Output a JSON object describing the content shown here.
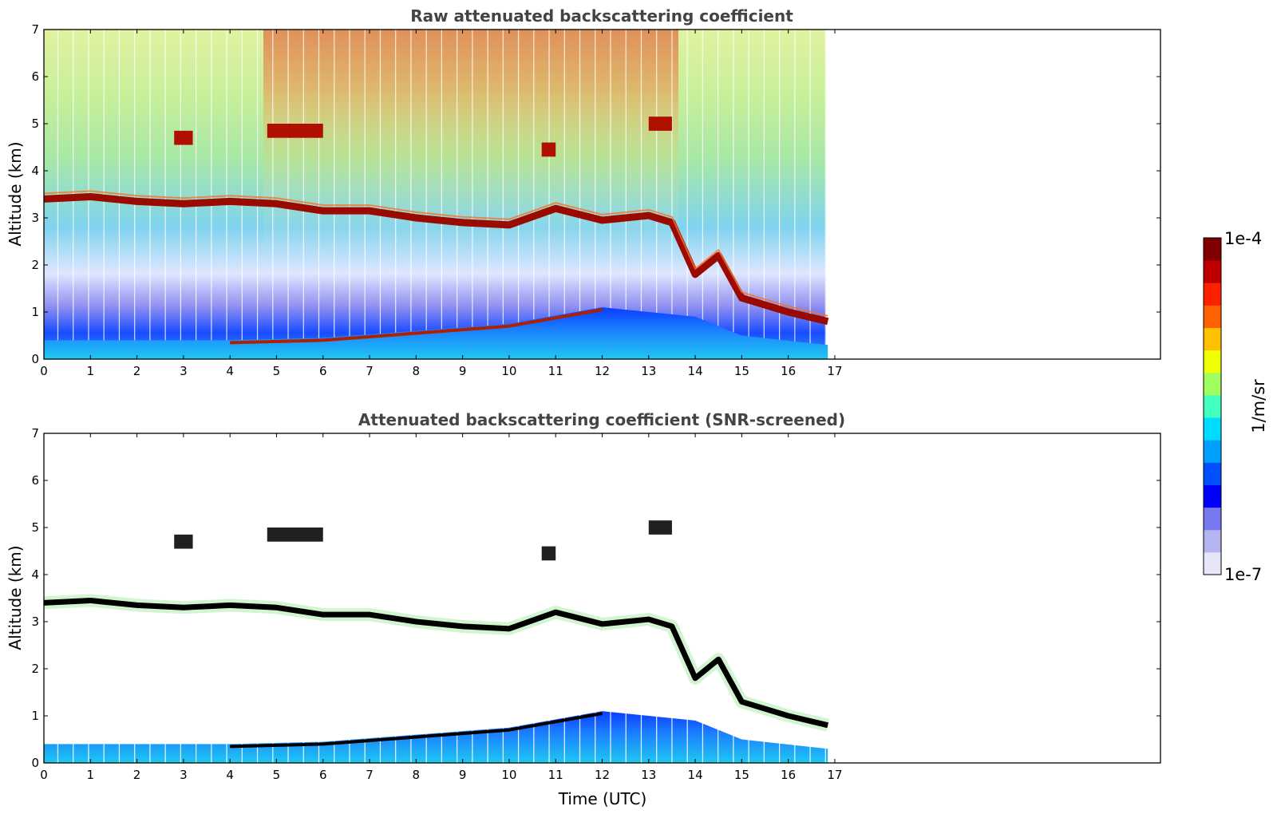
{
  "chart_data": [
    {
      "type": "heatmap",
      "title": "Raw attenuated backscattering coefficient",
      "xlabel": "",
      "ylabel": "Altitude (km)",
      "xlim": [
        0,
        24
      ],
      "ylim": [
        0,
        7
      ],
      "xticks": [
        "0",
        "1",
        "2",
        "3",
        "4",
        "5",
        "6",
        "7",
        "8",
        "9",
        "10",
        "11",
        "12",
        "13",
        "14",
        "15",
        "16",
        "17"
      ],
      "yticks": [
        "0",
        "1",
        "2",
        "3",
        "4",
        "5",
        "6",
        "7"
      ],
      "data_end_time": 16.85,
      "cloud_layer": [
        [
          0,
          3.4
        ],
        [
          1,
          3.45
        ],
        [
          2,
          3.35
        ],
        [
          3,
          3.3
        ],
        [
          4,
          3.35
        ],
        [
          5,
          3.3
        ],
        [
          6,
          3.15
        ],
        [
          7,
          3.15
        ],
        [
          8,
          3.0
        ],
        [
          9,
          2.9
        ],
        [
          10,
          2.85
        ],
        [
          11,
          3.2
        ],
        [
          12,
          2.95
        ],
        [
          13,
          3.05
        ],
        [
          13.5,
          2.9
        ],
        [
          14,
          1.8
        ],
        [
          14.5,
          2.2
        ],
        [
          15,
          1.3
        ],
        [
          16,
          1.0
        ],
        [
          16.85,
          0.8
        ]
      ],
      "boundary_layer_top": [
        [
          0,
          0.4
        ],
        [
          2,
          0.4
        ],
        [
          4,
          0.4
        ],
        [
          6,
          0.45
        ],
        [
          8,
          0.6
        ],
        [
          10,
          0.75
        ],
        [
          12,
          1.1
        ],
        [
          13,
          1.0
        ],
        [
          14,
          0.9
        ],
        [
          15,
          0.5
        ],
        [
          16.85,
          0.3
        ]
      ]
    },
    {
      "type": "heatmap",
      "title": "Attenuated backscattering coefficient (SNR-screened)",
      "xlabel": "Time (UTC)",
      "ylabel": "Altitude (km)",
      "xlim": [
        0,
        24
      ],
      "ylim": [
        0,
        7
      ],
      "xticks": [
        "0",
        "1",
        "2",
        "3",
        "4",
        "5",
        "6",
        "7",
        "8",
        "9",
        "10",
        "11",
        "12",
        "13",
        "14",
        "15",
        "16",
        "17"
      ],
      "yticks": [
        "0",
        "1",
        "2",
        "3",
        "4",
        "5",
        "6",
        "7"
      ],
      "data_end_time": 16.85
    }
  ],
  "colorbar": {
    "max_label": "1e-4",
    "min_label": "1e-7",
    "unit_label": "1/m/sr",
    "colors": [
      "#e6e6f8",
      "#b4b4f0",
      "#7878f0",
      "#0000ff",
      "#0050ff",
      "#00a0ff",
      "#00dcff",
      "#40ffc0",
      "#a0ff60",
      "#f0ff00",
      "#ffc000",
      "#ff6000",
      "#ff2000",
      "#c00000",
      "#800000"
    ]
  }
}
